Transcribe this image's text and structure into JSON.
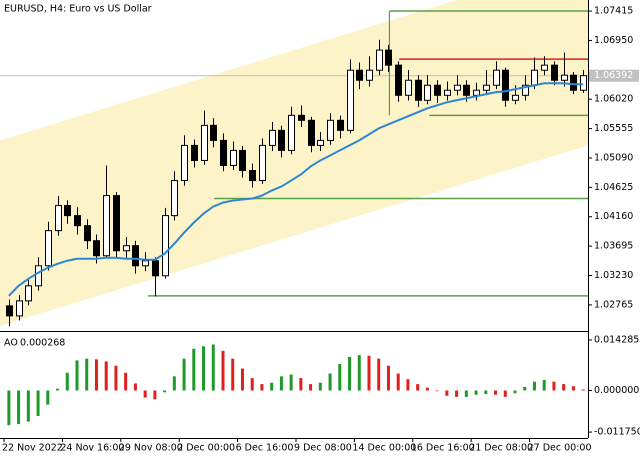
{
  "chart_data": [
    {
      "type": "candlestick",
      "title": "EURUSD, H4:  Euro vs US Dollar",
      "candles": [
        [
          1.0275,
          1.0285,
          1.0243,
          1.02591
        ],
        [
          1.02591,
          1.0292,
          1.0252,
          1.02829
        ],
        [
          1.02829,
          1.0318,
          1.0276,
          1.03067
        ],
        [
          1.03067,
          1.0352,
          1.0299,
          1.03384
        ],
        [
          1.03384,
          1.0408,
          1.0331,
          1.0394
        ],
        [
          1.0394,
          1.0449,
          1.0386,
          1.04337
        ],
        [
          1.04337,
          1.0442,
          1.0405,
          1.04178
        ],
        [
          1.04178,
          1.0431,
          1.0388,
          1.04019
        ],
        [
          1.04019,
          1.0412,
          1.0365,
          1.03781
        ],
        [
          1.03781,
          1.0388,
          1.0342,
          1.03543
        ],
        [
          1.03543,
          1.0497,
          1.035,
          1.04495
        ],
        [
          1.04495,
          1.0455,
          1.0352,
          1.03622
        ],
        [
          1.03622,
          1.0384,
          1.0349,
          1.03702
        ],
        [
          1.03702,
          1.0378,
          1.0326,
          1.03384
        ],
        [
          1.03384,
          1.036,
          1.033,
          1.03464
        ],
        [
          1.03464,
          1.0352,
          1.029,
          1.03226
        ],
        [
          1.03226,
          1.043,
          1.0318,
          1.04178
        ],
        [
          1.04178,
          1.0488,
          1.041,
          1.04733
        ],
        [
          1.04733,
          1.0545,
          1.0465,
          1.05289
        ],
        [
          1.05289,
          1.0538,
          1.0494,
          1.05051
        ],
        [
          1.05051,
          1.0584,
          1.0498,
          1.05606
        ],
        [
          1.05606,
          1.0572,
          1.0526,
          1.05368
        ],
        [
          1.05368,
          1.0548,
          1.0488,
          1.04971
        ],
        [
          1.04971,
          1.0535,
          1.049,
          1.0521
        ],
        [
          1.0521,
          1.0528,
          1.0478,
          1.04892
        ],
        [
          1.04892,
          1.05,
          1.0462,
          1.04733
        ],
        [
          1.04733,
          1.054,
          1.0468,
          1.05289
        ],
        [
          1.05289,
          1.0566,
          1.052,
          1.05527
        ],
        [
          1.05527,
          1.056,
          1.051,
          1.0521
        ],
        [
          1.0521,
          1.059,
          1.0515,
          1.05765
        ],
        [
          1.05765,
          1.0592,
          1.0558,
          1.05686
        ],
        [
          1.05686,
          1.0574,
          1.0518,
          1.05289
        ],
        [
          1.05289,
          1.055,
          1.052,
          1.05368
        ],
        [
          1.05368,
          1.058,
          1.053,
          1.05686
        ],
        [
          1.05686,
          1.0576,
          1.054,
          1.05527
        ],
        [
          1.05527,
          1.0665,
          1.0548,
          1.06479
        ],
        [
          1.06479,
          1.066,
          1.0618,
          1.0632
        ],
        [
          1.0632,
          1.067,
          1.0622,
          1.06479
        ],
        [
          1.06479,
          1.0696,
          1.064,
          1.06797
        ],
        [
          1.06797,
          1.0688,
          1.0645,
          1.06559
        ],
        [
          1.06559,
          1.0662,
          1.0598,
          1.06082
        ],
        [
          1.06082,
          1.0648,
          1.06,
          1.0632
        ],
        [
          1.0632,
          1.064,
          1.059,
          1.06003
        ],
        [
          1.06003,
          1.064,
          1.0594,
          1.06241
        ],
        [
          1.06241,
          1.0632,
          1.0596,
          1.06082
        ],
        [
          1.06082,
          1.063,
          1.06,
          1.06162
        ],
        [
          1.06162,
          1.064,
          1.0608,
          1.06241
        ],
        [
          1.06241,
          1.0632,
          1.0598,
          1.06082
        ],
        [
          1.06082,
          1.0628,
          1.06,
          1.06162
        ],
        [
          1.06162,
          1.0648,
          1.061,
          1.06241
        ],
        [
          1.06241,
          1.0662,
          1.0618,
          1.06479
        ],
        [
          1.06479,
          1.0652,
          1.059,
          1.06003
        ],
        [
          1.06003,
          1.0624,
          1.0594,
          1.06082
        ],
        [
          1.06082,
          1.064,
          1.06,
          1.06241
        ],
        [
          1.06241,
          1.0668,
          1.0618,
          1.06479
        ],
        [
          1.06479,
          1.067,
          1.064,
          1.06559
        ],
        [
          1.06559,
          1.0662,
          1.0624,
          1.0632
        ],
        [
          1.0632,
          1.0676,
          1.0622,
          1.064
        ],
        [
          1.064,
          1.0645,
          1.061,
          1.06162
        ],
        [
          1.06162,
          1.0648,
          1.0612,
          1.06392
        ]
      ],
      "ma": {
        "color": "#2b86d4",
        "values": [
          1.02908,
          1.03067,
          1.03178,
          1.03273,
          1.03353,
          1.03416,
          1.03464,
          1.03495,
          1.03495,
          1.03495,
          1.03511,
          1.03511,
          1.03495,
          1.03495,
          1.0348,
          1.0348,
          1.03575,
          1.03734,
          1.03908,
          1.04067,
          1.0421,
          1.04321,
          1.04384,
          1.04416,
          1.04432,
          1.04448,
          1.04495,
          1.04575,
          1.04638,
          1.04733,
          1.04829,
          1.04956,
          1.05051,
          1.0513,
          1.0521,
          1.05289,
          1.05368,
          1.05463,
          1.05559,
          1.05622,
          1.05686,
          1.05749,
          1.05813,
          1.05876,
          1.05924,
          1.05971,
          1.06003,
          1.06035,
          1.06066,
          1.06098,
          1.0613,
          1.06146,
          1.06178,
          1.06209,
          1.06241,
          1.06273,
          1.06273,
          1.06273,
          1.06257,
          1.06257
        ]
      },
      "channel": {
        "color": "#fdf3c9",
        "upper": [
          1.05368,
          1.08225
        ],
        "lower": [
          1.02432,
          1.05289
        ]
      },
      "levels": [
        {
          "price": 1.07415,
          "from": 39.6,
          "color": "#5a9e4a"
        },
        {
          "price": 1.06654,
          "from": 40.6,
          "color": "#e0201a"
        },
        {
          "price": 1.05765,
          "from": 43.7,
          "color": "#5a9e4a"
        },
        {
          "price": 1.04448,
          "from": 21.6,
          "color": "#5a9e4a"
        },
        {
          "price": 1.02908,
          "from": 14.8,
          "color": "#5a9e4a"
        }
      ],
      "current_price": 1.06392,
      "ylim": [
        1.02352,
        1.0759
      ],
      "yticks": [
        1.07415,
        {
          "value": 1.0695,
          "label": "1.06950"
        },
        {
          "value": 1.0602,
          "label": "1.06020"
        },
        1.05555,
        {
          "value": 1.0509,
          "label": "1.05090"
        },
        1.04625,
        {
          "value": 1.0416,
          "label": "1.04160"
        },
        1.03695,
        {
          "value": 1.0323,
          "label": "1.03230"
        },
        1.02765
      ],
      "xticks": [
        {
          "value": 0,
          "label": "22 Nov 2022"
        },
        {
          "value": 6,
          "label": "24 Nov 16:00"
        },
        {
          "value": 12,
          "label": "29 Nov 08:00"
        },
        {
          "value": 18,
          "label": "2 Dec 00:00"
        },
        {
          "value": 24,
          "label": "6 Dec 16:00"
        },
        {
          "value": 30,
          "label": "9 Dec 08:00"
        },
        {
          "value": 36,
          "label": "14 Dec 00:00"
        },
        {
          "value": 42,
          "label": "16 Dec 16:00"
        },
        {
          "value": 48,
          "label": "21 Dec 08:00"
        },
        {
          "value": 54,
          "label": "27 Dec 00:00"
        }
      ]
    },
    {
      "type": "bar",
      "title": "AO",
      "last_value": 0.000268,
      "up_color": "#1f9a2a",
      "down_color": "#e0201a",
      "values": [
        -0.0098,
        -0.0095,
        -0.0088,
        -0.0072,
        -0.004,
        0.0005,
        0.005,
        0.0085,
        0.009,
        0.0088,
        0.0082,
        0.007,
        0.005,
        0.002,
        -0.002,
        -0.0025,
        -0.0005,
        0.004,
        0.009,
        0.0118,
        0.0125,
        0.013,
        0.0112,
        0.009,
        0.0062,
        0.0035,
        0.0018,
        0.0022,
        0.004,
        0.0045,
        0.0035,
        0.0018,
        0.0022,
        0.0048,
        0.0075,
        0.0095,
        0.01,
        0.0098,
        0.009,
        0.007,
        0.0048,
        0.0032,
        0.0018,
        0.0008,
        -0.0002,
        -0.0015,
        -0.0018,
        -0.0018,
        -0.0012,
        -0.001,
        -0.0012,
        -0.0018,
        -0.0008,
        0.001,
        0.0025,
        0.003,
        0.0025,
        0.0018,
        0.0012,
        0.0003
      ],
      "ylim": [
        -0.01343,
        0.01625
      ],
      "yticks": [
        0.014285,
        {
          "value": 0,
          "label": "0.000000"
        },
        {
          "value": -0.01175,
          "label": "-0.011750"
        }
      ]
    }
  ]
}
